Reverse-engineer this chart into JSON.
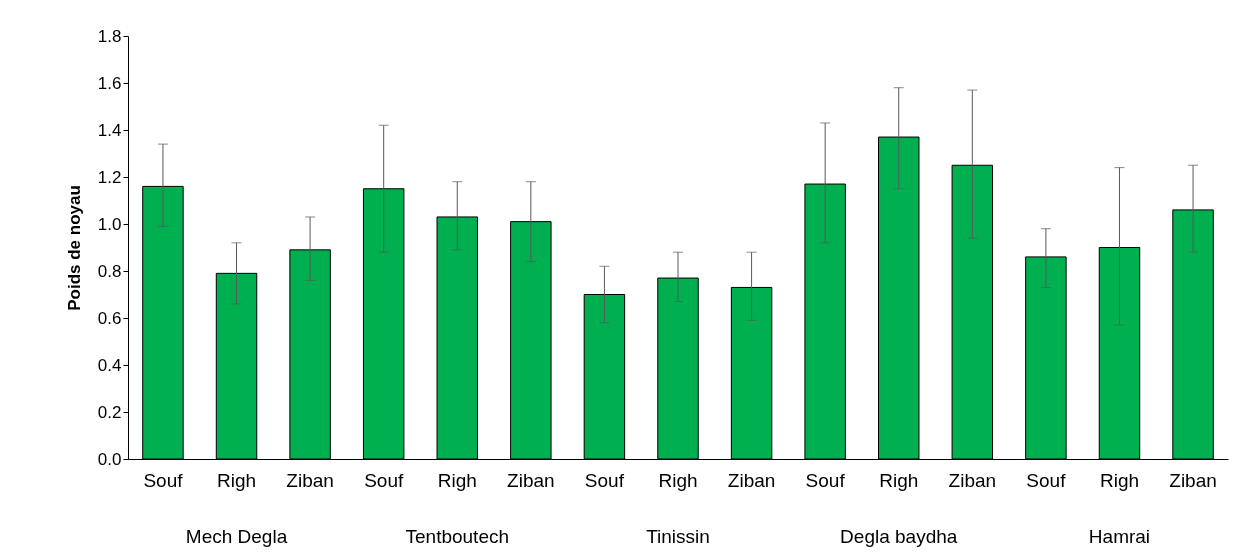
{
  "chart_data": {
    "type": "bar",
    "ylabel": "Poids de noyau",
    "categories": [
      "Souf",
      "Righ",
      "Ziban",
      "Souf",
      "Righ",
      "Ziban",
      "Souf",
      "Righ",
      "Ziban",
      "Souf",
      "Righ",
      "Ziban",
      "Souf",
      "Righ",
      "Ziban"
    ],
    "values": [
      1.16,
      0.79,
      0.89,
      1.15,
      1.03,
      1.01,
      0.7,
      0.77,
      0.73,
      1.17,
      1.37,
      1.25,
      0.86,
      0.9,
      1.06
    ],
    "errors": [
      [
        0.99,
        1.34
      ],
      [
        0.66,
        0.92
      ],
      [
        0.76,
        1.03
      ],
      [
        0.88,
        1.42
      ],
      [
        0.89,
        1.18
      ],
      [
        0.84,
        1.18
      ],
      [
        0.58,
        0.82
      ],
      [
        0.67,
        0.88
      ],
      [
        0.59,
        0.88
      ],
      [
        0.92,
        1.43
      ],
      [
        1.15,
        1.58
      ],
      [
        0.94,
        1.57
      ],
      [
        0.73,
        0.98
      ],
      [
        0.57,
        1.24
      ],
      [
        0.88,
        1.25
      ]
    ],
    "color": "#00b050",
    "ylim": [
      0,
      1.8
    ],
    "yticks": [
      {
        "value": 0,
        "label": "0.0"
      },
      0.2,
      0.4,
      0.6,
      0.8,
      {
        "value": 1,
        "label": "1.0"
      },
      1.2,
      1.4,
      1.6,
      1.8
    ],
    "annotations": [
      "Mech Degla",
      "Tentboutech",
      "Tinissin",
      "Degla baydha",
      "Hamrai"
    ],
    "grid": false
  }
}
